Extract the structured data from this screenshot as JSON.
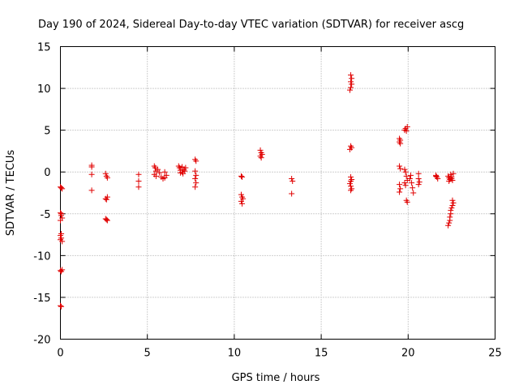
{
  "chart_data": {
    "type": "scatter",
    "title": "Day 190 of 2024, Sidereal Day-to-day VTEC variation (SDTVAR) for receiver ascg",
    "xlabel": "GPS time / hours",
    "ylabel": "SDTVAR / TECUs",
    "xlim": [
      0,
      25
    ],
    "ylim": [
      -20,
      15
    ],
    "xticks": [
      "0",
      "5",
      "10",
      "15",
      "20",
      "25"
    ],
    "yticks": [
      "15",
      "10",
      "5",
      "0",
      "-5",
      "-10",
      "-15",
      "-20"
    ],
    "grid": true,
    "marker": "+",
    "color": "#e00000",
    "series": [
      {
        "name": "SDTVAR",
        "points": [
          [
            0.0,
            -1.8
          ],
          [
            0.05,
            -1.9
          ],
          [
            0.1,
            -2.0
          ],
          [
            0.0,
            -4.9
          ],
          [
            0.05,
            -5.2
          ],
          [
            0.1,
            -5.5
          ],
          [
            0.0,
            -5.8
          ],
          [
            0.05,
            -5.0
          ],
          [
            0.0,
            -7.6
          ],
          [
            0.05,
            -7.9
          ],
          [
            0.0,
            -8.1
          ],
          [
            0.1,
            -8.3
          ],
          [
            0.05,
            -7.4
          ],
          [
            0.0,
            -11.8
          ],
          [
            0.05,
            -11.9
          ],
          [
            0.1,
            -11.7
          ],
          [
            0.0,
            -16.0
          ],
          [
            0.05,
            -16.1
          ],
          [
            1.8,
            0.8
          ],
          [
            1.8,
            0.6
          ],
          [
            1.8,
            -0.3
          ],
          [
            1.8,
            -2.2
          ],
          [
            2.6,
            -0.2
          ],
          [
            2.65,
            -0.5
          ],
          [
            2.7,
            -0.7
          ],
          [
            2.6,
            -3.2
          ],
          [
            2.7,
            -3.0
          ],
          [
            2.65,
            -3.3
          ],
          [
            2.6,
            -5.6
          ],
          [
            2.7,
            -5.8
          ],
          [
            2.65,
            -5.7
          ],
          [
            4.5,
            -0.3
          ],
          [
            4.5,
            -1.1
          ],
          [
            4.5,
            -1.8
          ],
          [
            5.4,
            0.7
          ],
          [
            5.45,
            0.5
          ],
          [
            5.5,
            0.1
          ],
          [
            5.4,
            -0.3
          ],
          [
            5.5,
            -0.5
          ],
          [
            5.7,
            -0.1
          ],
          [
            5.8,
            -0.6
          ],
          [
            5.9,
            -0.8
          ],
          [
            6.0,
            0.0
          ],
          [
            6.1,
            -0.4
          ],
          [
            5.6,
            0.3
          ],
          [
            6.0,
            -0.7
          ],
          [
            6.8,
            0.7
          ],
          [
            6.85,
            0.5
          ],
          [
            6.9,
            0.2
          ],
          [
            7.0,
            0.0
          ],
          [
            7.05,
            -0.2
          ],
          [
            7.1,
            0.3
          ],
          [
            7.2,
            0.5
          ],
          [
            6.9,
            -0.1
          ],
          [
            7.15,
            0.1
          ],
          [
            7.0,
            0.6
          ],
          [
            7.75,
            1.5
          ],
          [
            7.8,
            1.3
          ],
          [
            7.75,
            0.1
          ],
          [
            7.8,
            -0.4
          ],
          [
            7.75,
            -0.8
          ],
          [
            7.8,
            -1.3
          ],
          [
            7.75,
            -1.8
          ],
          [
            10.4,
            -0.5
          ],
          [
            10.45,
            -0.6
          ],
          [
            10.4,
            -2.7
          ],
          [
            10.45,
            -3.0
          ],
          [
            10.5,
            -3.2
          ],
          [
            10.4,
            -3.5
          ],
          [
            10.45,
            -3.8
          ],
          [
            11.5,
            2.6
          ],
          [
            11.55,
            2.3
          ],
          [
            11.6,
            2.1
          ],
          [
            11.5,
            1.9
          ],
          [
            11.55,
            1.7
          ],
          [
            13.3,
            -0.8
          ],
          [
            13.35,
            -1.1
          ],
          [
            13.3,
            -2.6
          ],
          [
            16.7,
            11.6
          ],
          [
            16.75,
            11.2
          ],
          [
            16.7,
            10.8
          ],
          [
            16.75,
            10.5
          ],
          [
            16.7,
            10.1
          ],
          [
            16.65,
            9.8
          ],
          [
            16.7,
            3.1
          ],
          [
            16.75,
            2.9
          ],
          [
            16.65,
            2.7
          ],
          [
            16.7,
            -0.6
          ],
          [
            16.75,
            -0.9
          ],
          [
            16.7,
            -1.1
          ],
          [
            16.65,
            -1.4
          ],
          [
            16.7,
            -1.7
          ],
          [
            16.75,
            -2.0
          ],
          [
            16.7,
            -2.2
          ],
          [
            19.5,
            4.0
          ],
          [
            19.55,
            3.8
          ],
          [
            19.5,
            3.6
          ],
          [
            19.55,
            3.4
          ],
          [
            19.5,
            0.7
          ],
          [
            19.55,
            0.4
          ],
          [
            19.5,
            -1.5
          ],
          [
            19.55,
            -2.0
          ],
          [
            19.5,
            -2.4
          ],
          [
            19.8,
            5.0
          ],
          [
            19.85,
            5.2
          ],
          [
            19.9,
            4.9
          ],
          [
            19.95,
            5.4
          ],
          [
            19.8,
            0.3
          ],
          [
            19.85,
            0.0
          ],
          [
            19.9,
            -0.5
          ],
          [
            19.95,
            -1.0
          ],
          [
            19.8,
            -1.3
          ],
          [
            19.85,
            -1.6
          ],
          [
            19.9,
            -3.4
          ],
          [
            19.95,
            -3.6
          ],
          [
            20.1,
            -0.8
          ],
          [
            20.2,
            -1.3
          ],
          [
            20.25,
            -1.9
          ],
          [
            20.3,
            -2.5
          ],
          [
            20.15,
            -0.4
          ],
          [
            20.6,
            -0.2
          ],
          [
            20.6,
            -0.8
          ],
          [
            20.65,
            -1.2
          ],
          [
            20.6,
            -1.5
          ],
          [
            21.6,
            -0.4
          ],
          [
            21.65,
            -0.6
          ],
          [
            21.7,
            -0.8
          ],
          [
            21.6,
            -0.5
          ],
          [
            22.3,
            -0.5
          ],
          [
            22.35,
            -0.7
          ],
          [
            22.4,
            -0.9
          ],
          [
            22.45,
            -0.3
          ],
          [
            22.5,
            -0.6
          ],
          [
            22.55,
            -1.0
          ],
          [
            22.6,
            -0.2
          ],
          [
            22.35,
            -1.1
          ],
          [
            22.5,
            -0.8
          ],
          [
            22.3,
            -6.4
          ],
          [
            22.35,
            -6.1
          ],
          [
            22.4,
            -5.8
          ],
          [
            22.4,
            -5.4
          ],
          [
            22.45,
            -5.0
          ],
          [
            22.45,
            -4.6
          ],
          [
            22.5,
            -4.3
          ],
          [
            22.55,
            -4.0
          ],
          [
            22.6,
            -3.7
          ],
          [
            22.55,
            -3.4
          ]
        ]
      }
    ]
  }
}
